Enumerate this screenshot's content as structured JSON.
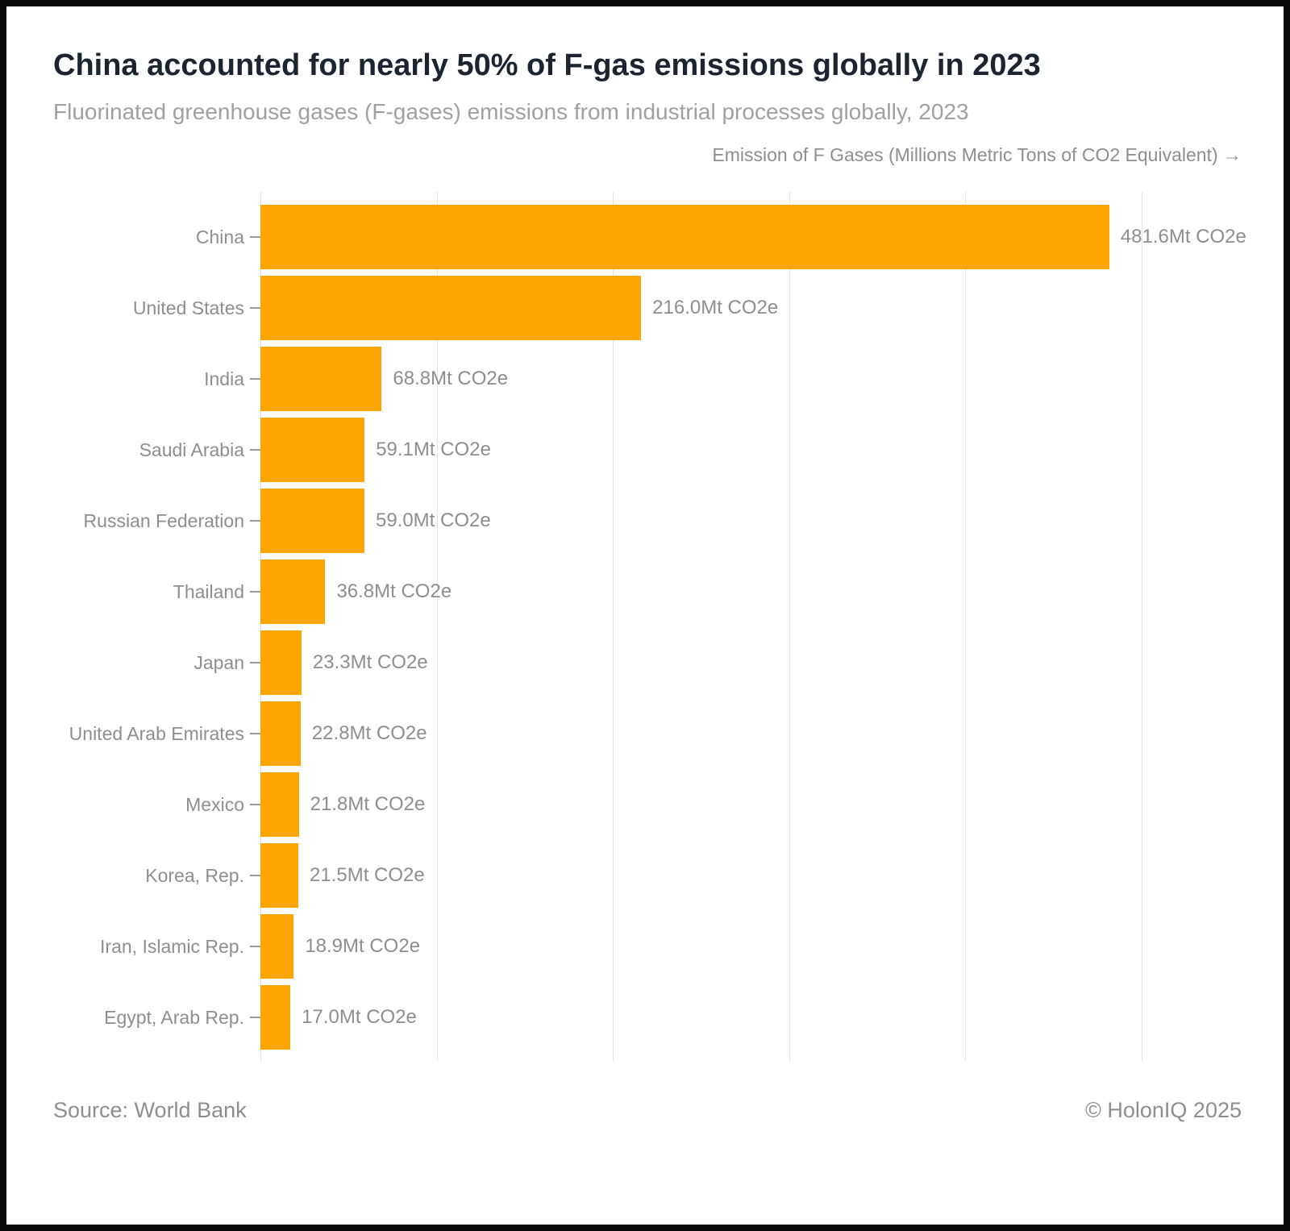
{
  "header": {
    "title": "China accounted for nearly 50% of F-gas emissions globally in 2023",
    "subtitle": "Fluorinated greenhouse gases (F-gases) emissions from industrial processes globally, 2023"
  },
  "chart_data": {
    "type": "bar",
    "orientation": "horizontal",
    "axis_label": "Emission of F Gases (Millions Metric Tons of CO2 Equivalent) →",
    "categories": [
      "China",
      "United States",
      "India",
      "Saudi Arabia",
      "Russian Federation",
      "Thailand",
      "Japan",
      "United Arab Emirates",
      "Mexico",
      "Korea, Rep.",
      "Iran, Islamic Rep.",
      "Egypt, Arab Rep."
    ],
    "values": [
      481.6,
      216.0,
      68.8,
      59.1,
      59.0,
      36.8,
      23.3,
      22.8,
      21.8,
      21.5,
      18.9,
      17.0
    ],
    "value_labels": [
      "481.6Mt CO2e",
      "216.0Mt CO2e",
      "68.8Mt CO2e",
      "59.1Mt CO2e",
      "59.0Mt CO2e",
      "36.8Mt CO2e",
      "23.3Mt CO2e",
      "22.8Mt CO2e",
      "21.8Mt CO2e",
      "21.5Mt CO2e",
      "18.9Mt CO2e",
      "17.0Mt CO2e"
    ],
    "unit_suffix": "Mt CO2e",
    "xlim": [
      0,
      500
    ],
    "gridline_step": 100,
    "grid": true,
    "legend": false,
    "tick_labels_shown": false,
    "bar_color": "#FFA502"
  },
  "colors": {
    "title": "#1b2430",
    "muted_text": "#8e8e8e",
    "subtitle_text": "#a0a0a0",
    "gridline": "#e4e4e4",
    "bar": "#FFA502",
    "frame": "#0a0a0a",
    "background": "#ffffff"
  },
  "footer": {
    "source": "Source: World Bank",
    "copyright": "© HolonIQ 2025"
  }
}
